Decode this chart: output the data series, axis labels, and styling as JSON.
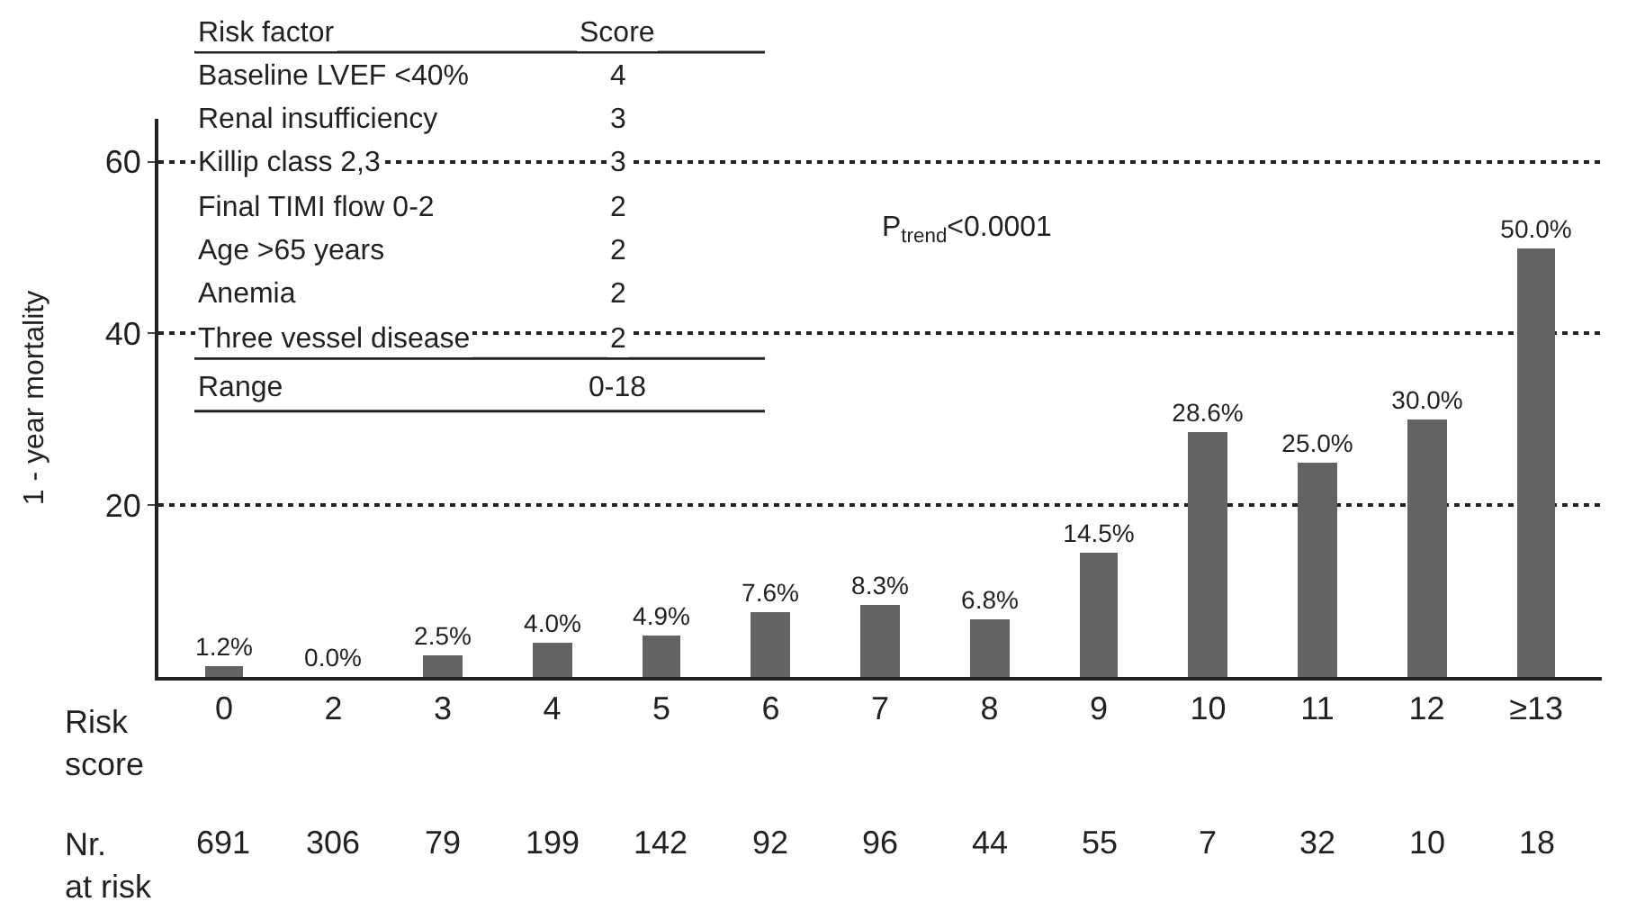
{
  "chart_data": {
    "type": "bar",
    "ylabel": "1 - year mortality",
    "xlabel": "Risk\nscore",
    "categories": [
      "0",
      "2",
      "3",
      "4",
      "5",
      "6",
      "7",
      "8",
      "9",
      "10",
      "11",
      "12",
      "≥13"
    ],
    "values": [
      1.2,
      0.0,
      2.5,
      4.0,
      4.9,
      7.6,
      8.3,
      6.8,
      14.5,
      28.6,
      25.0,
      30.0,
      50.0
    ],
    "value_labels": [
      "1.2%",
      "0.0%",
      "2.5%",
      "4.0%",
      "4.9%",
      "7.6%",
      "8.3%",
      "6.8%",
      "14.5%",
      "28.6%",
      "25.0%",
      "30.0%",
      "50.0%"
    ],
    "color": "#636366",
    "ylim": [
      0,
      65
    ],
    "yticks": [
      20,
      40,
      60
    ],
    "grid": "y",
    "annotations": [
      "Risk factor",
      "Score",
      "Baseline LVEF <40%",
      "4",
      "Renal insufficiency",
      "3",
      "Killip class 2,3",
      "3",
      "Final TIMI flow 0-2",
      "2",
      "Age >65 years",
      "2",
      "Anemia",
      "2",
      "Three vessel disease",
      "2",
      "Range",
      "0-18",
      "P$_{trend}$<0.0001",
      "Nr.\nat risk",
      "691",
      "306",
      "79",
      "199",
      "142",
      "92",
      "96",
      "44",
      "55",
      "7",
      "32",
      "10",
      "18"
    ]
  }
}
